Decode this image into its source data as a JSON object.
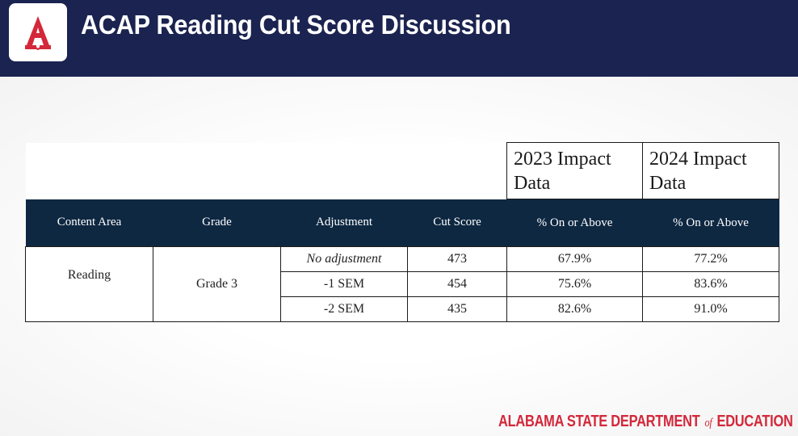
{
  "header": {
    "title": "ACAP Reading Cut Score Discussion",
    "logo_icon": "acap-a-logo-icon"
  },
  "table": {
    "year_headers": [
      "2023 Impact Data",
      "2024 Impact Data"
    ],
    "columns": [
      "Content Area",
      "Grade",
      "Adjustment",
      "Cut Score",
      "% On or Above",
      "% On or Above"
    ],
    "content_area": "Reading",
    "grade": "Grade 3",
    "rows": [
      {
        "adjustment": "No adjustment",
        "cut_score": "473",
        "pct_2023": "67.9%",
        "pct_2024": "77.2%"
      },
      {
        "adjustment": "-1 SEM",
        "cut_score": "454",
        "pct_2023": "75.6%",
        "pct_2024": "83.6%"
      },
      {
        "adjustment": "-2 SEM",
        "cut_score": "435",
        "pct_2023": "82.6%",
        "pct_2024": "91.0%"
      }
    ]
  },
  "footer": {
    "org_part1": "ALABAMA STATE DEPARTMENT",
    "org_of": "of",
    "org_part2": "EDUCATION"
  },
  "colors": {
    "header_bg": "#1b2350",
    "table_header_bg": "#0e2842",
    "brand_red": "#d3283a"
  }
}
